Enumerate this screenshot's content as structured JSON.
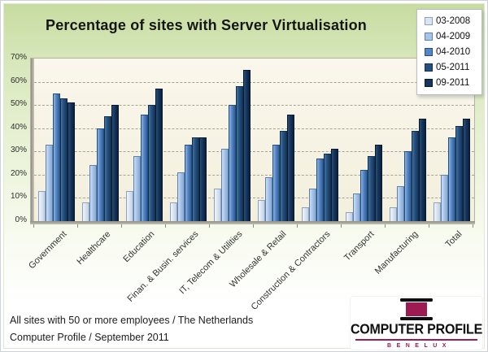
{
  "title": "Percentage of sites with Server Virtualisation",
  "footer": {
    "line1": "All sites with 50 or more employees / The Netherlands",
    "line2": "Computer Profile / September 2011"
  },
  "logo": {
    "name": "COMPUTER PROFILE",
    "subtitle": "BENELUX",
    "accent": "#9d1a52",
    "bar_color": "#0e0e0e"
  },
  "colors": {
    "canvas_green_top": "#c7dca0",
    "plot_background": "#f5f1e0",
    "gridline": "#a9a391",
    "legend_border": "#b9bdc2"
  },
  "chart_data": {
    "type": "bar",
    "title": "Percentage of sites with Server Virtualisation",
    "categories": [
      "Government",
      "Healthcare",
      "Education",
      "Finan. & Busin. services",
      "IT, Telecom & Utilities",
      "Wholesale & Retail",
      "Construction & Contractors",
      "Transport",
      "Manufacturing",
      "Total"
    ],
    "series": [
      {
        "name": "03-2008",
        "values": [
          13,
          8,
          13,
          8,
          14,
          9,
          6,
          4,
          6,
          8
        ],
        "fill": "#dbe5f2",
        "fill_light": "#f0f5fc",
        "fill_dark": "#bed0e5",
        "border": "#8aa2bd"
      },
      {
        "name": "04-2009",
        "values": [
          33,
          24,
          28,
          21,
          31,
          19,
          14,
          12,
          15,
          20
        ],
        "fill": "#a8c4e8",
        "fill_light": "#cdddf3",
        "fill_dark": "#86a8d3",
        "border": "#5f82ab"
      },
      {
        "name": "04-2010",
        "values": [
          55,
          40,
          46,
          33,
          50,
          33,
          27,
          22,
          30,
          36
        ],
        "fill": "#5585c4",
        "fill_light": "#8db3e2",
        "fill_dark": "#2f5d96",
        "border": "#234f7f"
      },
      {
        "name": "05-2011",
        "values": [
          53,
          45,
          50,
          36,
          58,
          39,
          29,
          28,
          39,
          41
        ],
        "fill": "#24507e",
        "fill_light": "#46729f",
        "fill_dark": "#16375d",
        "border": "#122f4e"
      },
      {
        "name": "09-2011",
        "values": [
          51,
          50,
          57,
          36,
          65,
          46,
          31,
          33,
          44,
          44
        ],
        "fill": "#15355c",
        "fill_light": "#2a4d74",
        "fill_dark": "#0b1f3a",
        "border": "#081a30"
      }
    ],
    "ylim": [
      0,
      70
    ],
    "ytick_step": 10,
    "ytick_format": "percent",
    "xlabel": "",
    "ylabel": "",
    "grid": "horizontal-dashed",
    "legend_position": "top-right",
    "footnote": "All sites with 50 or more employees / The Netherlands — Computer Profile / September 2011"
  }
}
